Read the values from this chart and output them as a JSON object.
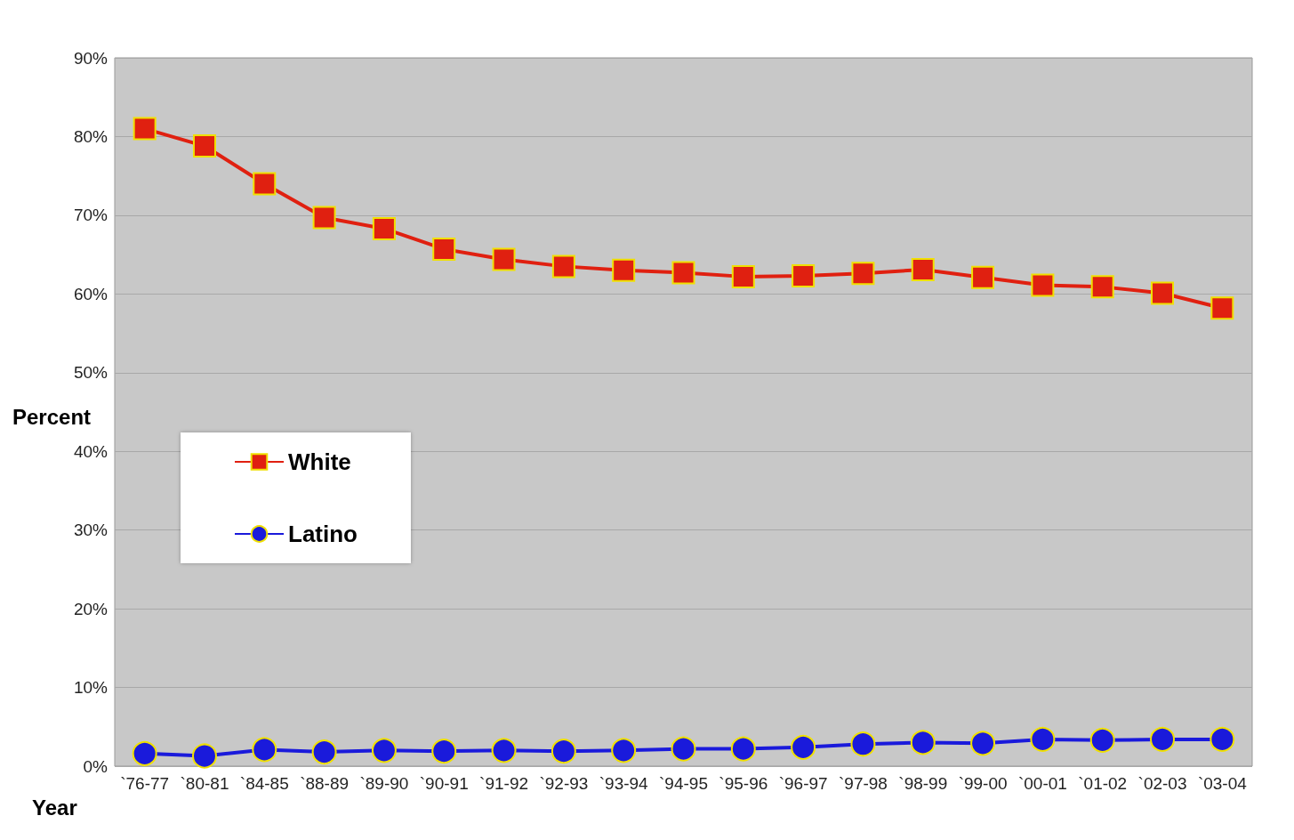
{
  "chart_data": {
    "type": "line",
    "xlabel": "Year",
    "ylabel": "Percent",
    "categories": [
      "`76-77",
      "`80-81",
      "`84-85",
      "`88-89",
      "`89-90",
      "`90-91",
      "`91-92",
      "`92-93",
      "`93-94",
      "`94-95",
      "`95-96",
      "`96-97",
      "`97-98",
      "`98-99",
      "`99-00",
      "`00-01",
      "`01-02",
      "`02-03",
      "`03-04"
    ],
    "series": [
      {
        "name": "White",
        "color": "#e02010",
        "marker": "square",
        "values": [
          81.0,
          78.8,
          74.0,
          69.7,
          68.3,
          65.7,
          64.4,
          63.5,
          63.0,
          62.7,
          62.2,
          62.3,
          62.6,
          63.1,
          62.1,
          61.1,
          60.9,
          60.1,
          58.2
        ]
      },
      {
        "name": "Latino",
        "color": "#1a1adb",
        "marker": "circle",
        "values": [
          1.6,
          1.3,
          2.1,
          1.8,
          2.0,
          1.9,
          2.0,
          1.9,
          2.0,
          2.2,
          2.2,
          2.4,
          2.8,
          3.0,
          2.9,
          3.4,
          3.3,
          3.4,
          3.4
        ]
      }
    ],
    "ylim": [
      0,
      90
    ],
    "yticks": [
      {
        "value": 0,
        "label": "0%"
      },
      {
        "value": 10,
        "label": "10%"
      },
      {
        "value": 20,
        "label": "20%"
      },
      {
        "value": 30,
        "label": "30%"
      },
      {
        "value": 40,
        "label": "40%"
      },
      {
        "value": 50,
        "label": "50%"
      },
      {
        "value": 60,
        "label": "60%"
      },
      {
        "value": 70,
        "label": "70%"
      },
      {
        "value": 80,
        "label": "80%"
      },
      {
        "value": 90,
        "label": "90%"
      }
    ],
    "grid": "y",
    "legend": "left"
  }
}
